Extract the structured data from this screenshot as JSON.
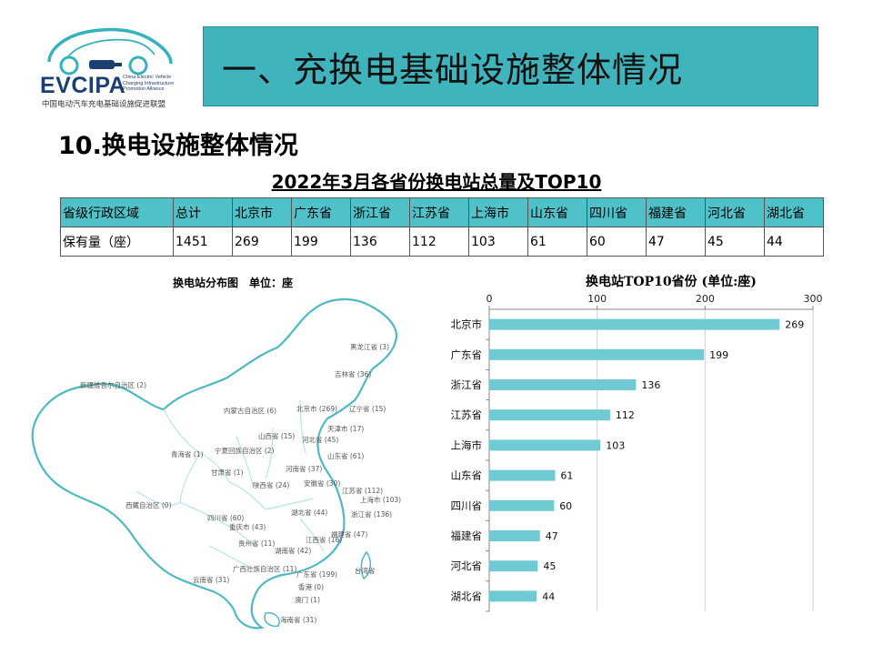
{
  "logo": {
    "name": "EVCIPA",
    "subtitle_lines": [
      "China Electric Vehicle",
      "Charging Infrastructure",
      "Promotion Alliance"
    ],
    "cn_name": "中国电动汽车充电基础设施促进联盟"
  },
  "header": {
    "title": "一、充换电基础设施整体情况"
  },
  "section": {
    "title": "10.换电设施整体情况"
  },
  "table": {
    "title": "2022年3月各省份换电站总量及TOP10",
    "header": [
      "省级行政区域",
      "总计",
      "北京市",
      "广东省",
      "浙江省",
      "江苏省",
      "上海市",
      "山东省",
      "四川省",
      "福建省",
      "河北省",
      "湖北省"
    ],
    "row": [
      "保有量（座）",
      "1451",
      "269",
      "199",
      "136",
      "112",
      "103",
      "61",
      "60",
      "47",
      "45",
      "44"
    ]
  },
  "map": {
    "title": "换电站分布图　单位：座",
    "labels": [
      "黑龙江省 (3)",
      "吉林省 (36)",
      "新疆维吾尔自治区 (2)",
      "内蒙古自治区 (6)",
      "北京市 (269)",
      "辽宁省 (15)",
      "天津市 (17)",
      "山西省 (15)",
      "河北省 (45)",
      "青海省 (1)",
      "宁夏回族自治区 (2)",
      "山东省 (61)",
      "甘肃省 (1)",
      "河南省 (37)",
      "陕西省 (24)",
      "安徽省 (30)",
      "江苏省 (112)",
      "上海市 (103)",
      "西藏自治区 (0)",
      "四川省 (60)",
      "湖北省 (44)",
      "浙江省 (136)",
      "重庆市 (43)",
      "福建省 (47)",
      "贵州省 (11)",
      "江西省 (16)",
      "湖南省 (42)",
      "云南省 (31)",
      "广西壮族自治区 (11)",
      "广东省 (199)",
      "台湾省",
      "香港 (0)",
      "澳门 (1)",
      "海南省 (31)"
    ]
  },
  "chart_data": {
    "type": "bar",
    "orientation": "horizontal",
    "title": "换电站TOP10省份 (单位:座)",
    "categories": [
      "北京市",
      "广东省",
      "浙江省",
      "江苏省",
      "上海市",
      "山东省",
      "四川省",
      "福建省",
      "河北省",
      "湖北省"
    ],
    "values": [
      269,
      199,
      136,
      112,
      103,
      61,
      60,
      47,
      45,
      44
    ],
    "xlim": [
      0,
      300
    ],
    "xticks": [
      0,
      100,
      200,
      300
    ],
    "axis_position": "top",
    "grid": true,
    "bar_color": "#6fcad3"
  }
}
